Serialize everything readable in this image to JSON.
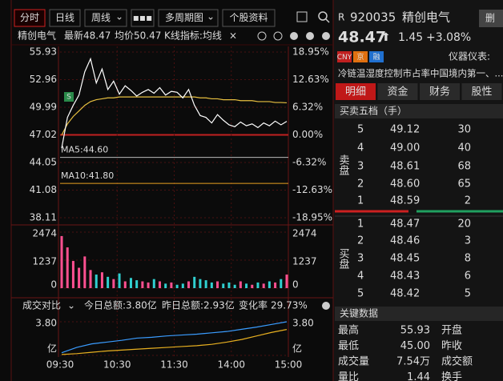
{
  "toolbar": {
    "tabs": [
      "分时",
      "日线",
      "周线",
      "多周期图",
      "个股资料"
    ]
  },
  "info_bar": {
    "name": "精创电气",
    "latest": "最新48.47",
    "avg": "均价50.47",
    "indicator": "K线指标:均线"
  },
  "price_chart": {
    "type": "line",
    "ylim": [
      38.11,
      55.93
    ],
    "yticks": [
      55.93,
      52.96,
      49.99,
      47.02,
      44.05,
      41.08,
      38.11
    ],
    "base": 47.02,
    "pct_ylim": [
      -18.95,
      18.95
    ],
    "pct_ticks": [
      {
        "value": 18.95,
        "label": "18.95%"
      },
      {
        "value": 12.63,
        "label": "12.63%"
      },
      {
        "value": 6.32,
        "label": "6.32%"
      },
      {
        "value": 0,
        "label": "0.00%"
      },
      {
        "value": -6.32,
        "label": "-6.32%"
      },
      {
        "value": -12.63,
        "label": "-12.63%"
      },
      {
        "value": -18.95,
        "label": "-18.95%"
      }
    ],
    "ma5": {
      "value": 44.6,
      "label": "MA5:44.60"
    },
    "ma10": {
      "value": 41.8,
      "label": "MA10:41.80"
    },
    "price": [
      45.6,
      48.9,
      50.2,
      51.3,
      53.8,
      55.2,
      52.6,
      54.1,
      51.9,
      52.8,
      51.4,
      52.3,
      51.8,
      51.2,
      51.6,
      51.9,
      51.5,
      52.1,
      51.3,
      51.7,
      51.6,
      51.0,
      51.9,
      50.2,
      49.1,
      48.9,
      48.3,
      49.2,
      48.6,
      48.1,
      47.9,
      48.4,
      48.0,
      48.2,
      47.8,
      48.3,
      48.0,
      48.5,
      48.1,
      48.47
    ],
    "average": [
      47.0,
      48.2,
      49.0,
      49.6,
      50.2,
      50.6,
      50.8,
      50.9,
      51.0,
      51.0,
      51.1,
      51.1,
      51.1,
      51.1,
      51.1,
      51.1,
      51.1,
      51.1,
      51.1,
      51.1,
      51.1,
      51.1,
      51.1,
      51.1,
      51.0,
      51.0,
      50.9,
      50.9,
      50.8,
      50.8,
      50.8,
      50.7,
      50.7,
      50.7,
      50.6,
      50.6,
      50.6,
      50.5,
      50.5,
      50.47
    ]
  },
  "volume_chart": {
    "type": "bar",
    "ylim": [
      0,
      2474
    ],
    "yticks": [
      2474,
      1237,
      0
    ],
    "values": [
      2300,
      1800,
      1200,
      900,
      1400,
      800,
      600,
      700,
      500,
      400,
      650,
      300,
      450,
      350,
      300,
      250,
      400,
      300,
      200,
      250,
      150,
      200,
      300,
      500,
      400,
      350,
      250,
      300,
      200,
      250,
      150,
      300,
      200,
      150,
      250,
      200,
      300,
      250,
      400,
      600
    ]
  },
  "turnover_chart": {
    "type": "line",
    "title": "成交对比",
    "today_label": "今日总额:3.80亿",
    "yesterday_label": "昨日总额:2.93亿",
    "change_label": "变化率",
    "change": "29.73%",
    "ylim": [
      0,
      3.8
    ],
    "yticks": [
      {
        "value": 3.8,
        "label": "3.80"
      },
      {
        "value": 0,
        "label": "亿"
      }
    ],
    "xticks": [
      "09:30",
      "10:30",
      "11:30",
      "14:00",
      "15:00"
    ],
    "today": [
      0.3,
      0.9,
      1.3,
      1.5,
      1.7,
      1.95,
      2.05,
      2.2,
      2.3,
      2.4,
      2.55,
      2.7,
      2.95,
      3.2,
      3.5,
      3.8
    ],
    "yesterday": [
      0.1,
      0.2,
      0.35,
      0.5,
      0.6,
      0.7,
      0.8,
      0.9,
      1.0,
      1.1,
      1.25,
      1.5,
      1.8,
      2.2,
      2.6,
      2.93
    ]
  },
  "quote": {
    "market": "R",
    "code": "920035",
    "name": "精创电气",
    "delete": "删",
    "price": "48.47",
    "change": "1.45",
    "pct": "+3.08%",
    "badges": [
      "CNY",
      "京",
      "融"
    ],
    "industry": "仪器仪表:",
    "concept": "冷链温湿度控制市占率中国境内第一、..."
  },
  "tabs": [
    "明细",
    "资金",
    "财务",
    "股性"
  ],
  "order_book": {
    "title": "买卖五档（手）",
    "sell_label": "卖盘",
    "buy_label": "买盘",
    "sell": [
      {
        "level": "5",
        "price": "49.12",
        "volume": "30"
      },
      {
        "level": "4",
        "price": "49.00",
        "volume": "40"
      },
      {
        "level": "3",
        "price": "48.61",
        "volume": "68"
      },
      {
        "level": "2",
        "price": "48.60",
        "volume": "65"
      },
      {
        "level": "1",
        "price": "48.59",
        "volume": "2"
      }
    ],
    "buy": [
      {
        "level": "1",
        "price": "48.47",
        "volume": "20"
      },
      {
        "level": "2",
        "price": "48.46",
        "volume": "3"
      },
      {
        "level": "3",
        "price": "48.45",
        "volume": "8"
      },
      {
        "level": "4",
        "price": "48.43",
        "volume": "6"
      },
      {
        "level": "5",
        "price": "48.42",
        "volume": "5"
      }
    ]
  },
  "key_data": {
    "title": "关键数据",
    "rows": [
      [
        "最高",
        "55.93",
        "开盘"
      ],
      [
        "最低",
        "45.00",
        "昨收"
      ],
      [
        "成交量",
        "7.54万",
        "成交额"
      ],
      [
        "量比",
        "1.44",
        "换手"
      ]
    ]
  }
}
